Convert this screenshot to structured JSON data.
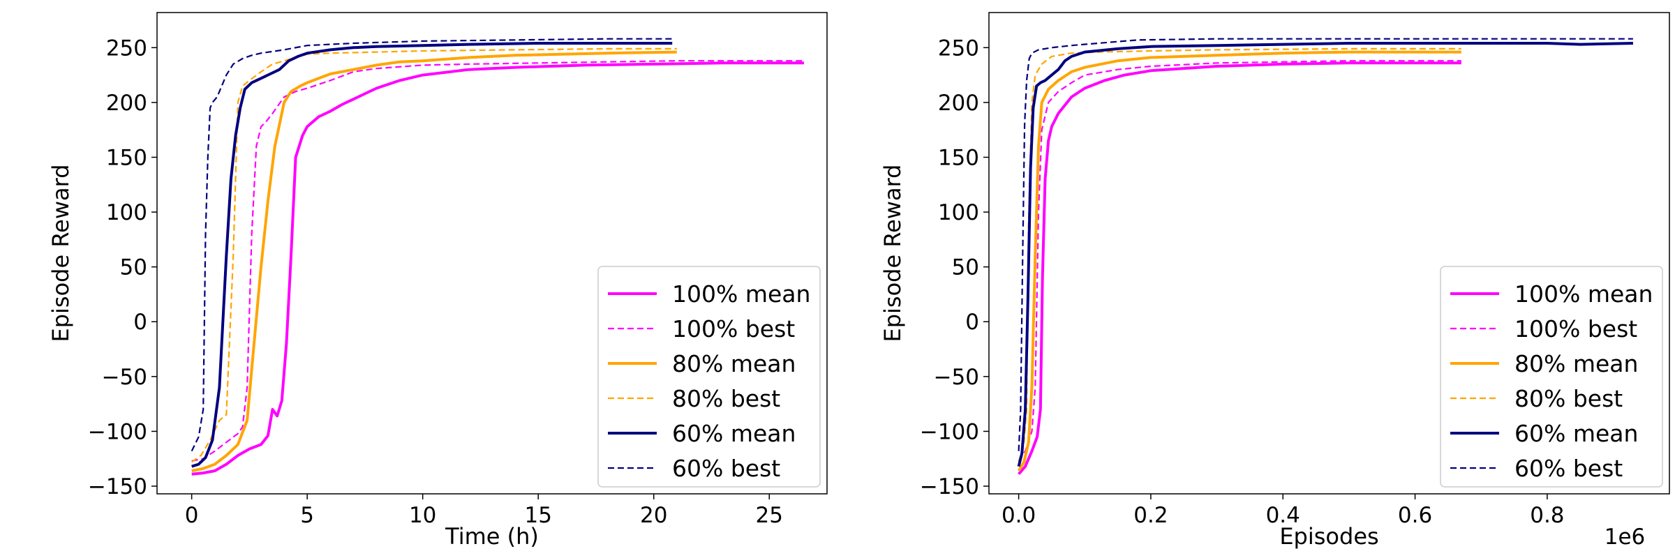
{
  "chart_data": [
    {
      "type": "line",
      "xlabel": "Time (h)",
      "ylabel": "Episode Reward",
      "xlim": [
        -1.5,
        27.5
      ],
      "ylim": [
        -157,
        282
      ],
      "xticks": [
        0,
        5,
        10,
        15,
        20,
        25
      ],
      "xtick_labels": [
        "0",
        "5",
        "10",
        "15",
        "20",
        "25"
      ],
      "yticks": [
        -150,
        -100,
        -50,
        0,
        50,
        100,
        150,
        200,
        250
      ],
      "ytick_labels": [
        "−150",
        "−100",
        "−50",
        "0",
        "50",
        "100",
        "150",
        "200",
        "250"
      ],
      "grid": false,
      "legend_position": "lower right",
      "series": [
        {
          "name": "100% mean",
          "color": "#ff00ff",
          "style": "solid",
          "x": [
            0,
            0.5,
            1,
            1.5,
            2,
            2.5,
            3,
            3.3,
            3.5,
            3.7,
            3.9,
            4.1,
            4.3,
            4.5,
            4.8,
            5,
            5.5,
            6,
            6.5,
            7,
            8,
            9,
            10,
            12,
            14,
            17,
            20,
            23,
            26.5
          ],
          "y": [
            -139,
            -138,
            -136,
            -130,
            -122,
            -116,
            -112,
            -104,
            -80,
            -86,
            -72,
            -20,
            60,
            150,
            170,
            178,
            187,
            192,
            198,
            203,
            213,
            220,
            225,
            230,
            232,
            234,
            235,
            236,
            236
          ]
        },
        {
          "name": "100% best",
          "color": "#ff00ff",
          "style": "dashed",
          "x": [
            0,
            0.5,
            1,
            1.5,
            2,
            2.2,
            2.4,
            2.6,
            2.8,
            3.0,
            3.2,
            3.5,
            4,
            4.5,
            5,
            6,
            7,
            8,
            10,
            12,
            15,
            18,
            21,
            26.5
          ],
          "y": [
            -127,
            -125,
            -118,
            -110,
            -102,
            -96,
            -60,
            80,
            160,
            178,
            182,
            190,
            205,
            210,
            213,
            220,
            228,
            231,
            234,
            235,
            236,
            237,
            238,
            238
          ]
        },
        {
          "name": "80% mean",
          "color": "#ffa500",
          "style": "solid",
          "x": [
            0,
            0.5,
            1,
            1.5,
            2,
            2.4,
            2.7,
            3.0,
            3.3,
            3.6,
            4.0,
            4.3,
            4.7,
            5,
            5.5,
            6,
            7,
            8,
            9,
            10,
            12,
            14,
            16,
            18,
            21
          ],
          "y": [
            -136,
            -134,
            -130,
            -122,
            -112,
            -90,
            -20,
            50,
            110,
            160,
            200,
            210,
            215,
            218,
            222,
            226,
            230,
            234,
            237,
            238,
            241,
            243,
            244,
            245,
            246
          ]
        },
        {
          "name": "80% best",
          "color": "#ffa500",
          "style": "dashed",
          "x": [
            0,
            0.4,
            0.8,
            1.2,
            1.5,
            1.8,
            2.0,
            2.2,
            2.5,
            3,
            3.5,
            4,
            5,
            6,
            8,
            10,
            14,
            18,
            21
          ],
          "y": [
            -128,
            -122,
            -108,
            -90,
            -85,
            60,
            200,
            215,
            220,
            228,
            235,
            238,
            244,
            245,
            246,
            247,
            248,
            249,
            249
          ]
        },
        {
          "name": "60% mean",
          "color": "#000080",
          "style": "solid",
          "x": [
            0,
            0.3,
            0.6,
            0.9,
            1.2,
            1.5,
            1.7,
            1.9,
            2.1,
            2.3,
            2.6,
            3,
            3.4,
            3.8,
            4.2,
            4.6,
            5,
            6,
            7,
            8,
            10,
            12,
            15,
            18,
            20.8
          ],
          "y": [
            -132,
            -130,
            -124,
            -108,
            -60,
            60,
            130,
            170,
            195,
            212,
            218,
            222,
            226,
            230,
            238,
            242,
            245,
            248,
            250,
            251,
            252,
            253,
            254,
            254,
            254
          ]
        },
        {
          "name": "60% best",
          "color": "#000080",
          "style": "dashed",
          "x": [
            0,
            0.3,
            0.5,
            0.6,
            0.7,
            0.8,
            0.9,
            1.1,
            1.3,
            1.5,
            1.8,
            2.2,
            2.6,
            3,
            4,
            5,
            7,
            10,
            14,
            18,
            20.8
          ],
          "y": [
            -118,
            -105,
            -80,
            80,
            150,
            195,
            200,
            205,
            215,
            225,
            235,
            240,
            243,
            245,
            248,
            252,
            254,
            256,
            257,
            258,
            258
          ]
        }
      ]
    },
    {
      "type": "line",
      "xlabel": "Episodes",
      "ylabel": "Episode Reward",
      "x_offset_label": "1e6",
      "xlim": [
        -0.045,
        0.985
      ],
      "ylim": [
        -157,
        282
      ],
      "xticks": [
        0.0,
        0.2,
        0.4,
        0.6,
        0.8
      ],
      "xtick_labels": [
        "0.0",
        "0.2",
        "0.4",
        "0.6",
        "0.8"
      ],
      "yticks": [
        -150,
        -100,
        -50,
        0,
        50,
        100,
        150,
        200,
        250
      ],
      "ytick_labels": [
        "−150",
        "−100",
        "−50",
        "0",
        "50",
        "100",
        "150",
        "200",
        "250"
      ],
      "grid": false,
      "legend_position": "lower right",
      "series": [
        {
          "name": "100% mean",
          "color": "#ff00ff",
          "style": "solid",
          "x": [
            0,
            0.01,
            0.02,
            0.028,
            0.033,
            0.036,
            0.04,
            0.045,
            0.05,
            0.06,
            0.08,
            0.1,
            0.13,
            0.16,
            0.2,
            0.3,
            0.4,
            0.5,
            0.6,
            0.67
          ],
          "y": [
            -139,
            -132,
            -118,
            -105,
            -80,
            40,
            130,
            165,
            178,
            190,
            205,
            213,
            220,
            225,
            229,
            233,
            235,
            236,
            236,
            236
          ]
        },
        {
          "name": "100% best",
          "color": "#ff00ff",
          "style": "dashed",
          "x": [
            0,
            0.01,
            0.02,
            0.025,
            0.03,
            0.035,
            0.045,
            0.06,
            0.08,
            0.1,
            0.15,
            0.2,
            0.3,
            0.4,
            0.5,
            0.67
          ],
          "y": [
            -127,
            -118,
            -100,
            -60,
            100,
            175,
            200,
            210,
            218,
            225,
            230,
            233,
            236,
            237,
            238,
            238
          ]
        },
        {
          "name": "80% mean",
          "color": "#ffa500",
          "style": "solid",
          "x": [
            0,
            0.008,
            0.015,
            0.02,
            0.025,
            0.03,
            0.035,
            0.045,
            0.06,
            0.08,
            0.1,
            0.15,
            0.2,
            0.3,
            0.4,
            0.5,
            0.6,
            0.67
          ],
          "y": [
            -136,
            -128,
            -110,
            -60,
            60,
            160,
            200,
            212,
            220,
            228,
            232,
            238,
            241,
            243,
            245,
            246,
            246,
            246
          ]
        },
        {
          "name": "80% best",
          "color": "#ffa500",
          "style": "dashed",
          "x": [
            0,
            0.008,
            0.012,
            0.015,
            0.02,
            0.025,
            0.035,
            0.05,
            0.08,
            0.12,
            0.2,
            0.3,
            0.5,
            0.67
          ],
          "y": [
            -128,
            -110,
            -80,
            90,
            200,
            225,
            235,
            242,
            245,
            246,
            247,
            248,
            249,
            249
          ]
        },
        {
          "name": "60% mean",
          "color": "#000080",
          "style": "solid",
          "x": [
            0,
            0.005,
            0.01,
            0.014,
            0.018,
            0.022,
            0.027,
            0.033,
            0.04,
            0.05,
            0.06,
            0.07,
            0.08,
            0.1,
            0.15,
            0.2,
            0.3,
            0.4,
            0.5,
            0.6,
            0.7,
            0.8,
            0.85,
            0.93
          ],
          "y": [
            -132,
            -120,
            -80,
            20,
            140,
            195,
            215,
            218,
            220,
            225,
            230,
            238,
            242,
            246,
            249,
            251,
            252,
            253,
            254,
            254,
            254,
            254,
            253,
            254
          ]
        },
        {
          "name": "60% best",
          "color": "#000080",
          "style": "dashed",
          "x": [
            0,
            0.003,
            0.006,
            0.009,
            0.012,
            0.016,
            0.02,
            0.03,
            0.05,
            0.08,
            0.12,
            0.18,
            0.3,
            0.5,
            0.7,
            0.93
          ],
          "y": [
            -118,
            -80,
            60,
            180,
            220,
            240,
            245,
            248,
            250,
            252,
            254,
            257,
            258,
            258,
            258,
            258
          ]
        }
      ]
    }
  ]
}
